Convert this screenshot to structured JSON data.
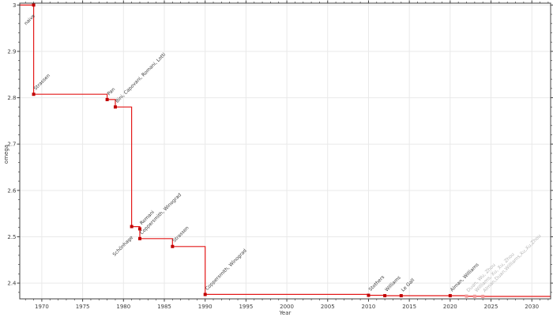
{
  "figure": {
    "background": "#ffffff"
  },
  "chart_data": {
    "type": "line",
    "step": "post",
    "title": "",
    "xlabel": "Year",
    "ylabel": "omega",
    "xlim": [
      1967.3,
      2032.3
    ],
    "ylim": [
      2.366,
      3.004
    ],
    "xticks": [
      1970,
      1975,
      1980,
      1985,
      1990,
      1995,
      2000,
      2005,
      2010,
      2015,
      2020,
      2025,
      2030
    ],
    "yticks": [
      2.4,
      2.5,
      2.6,
      2.7,
      2.8,
      2.9,
      3.0
    ],
    "x_minor_step": 1,
    "y_minor_step": 0.02,
    "grid": true,
    "legend_position": "none",
    "start_omega": 3.0,
    "points": [
      {
        "year": 1969,
        "omega": 3.0,
        "label": "naive",
        "placement": "below",
        "faded": false
      },
      {
        "year": 1969,
        "omega": 2.8074,
        "label": "Strassen",
        "placement": "above",
        "faded": false
      },
      {
        "year": 1978,
        "omega": 2.796,
        "label": "Pan",
        "placement": "above",
        "faded": false
      },
      {
        "year": 1979,
        "omega": 2.78,
        "label": "Bini, Capovani, Romani, Lotti",
        "placement": "above",
        "faded": false
      },
      {
        "year": 1981,
        "omega": 2.522,
        "label": "Schönhage",
        "placement": "below",
        "faded": false
      },
      {
        "year": 1982,
        "omega": 2.517,
        "label": "Romani",
        "placement": "above",
        "faded": false
      },
      {
        "year": 1982,
        "omega": 2.496,
        "label": "Coppersmith, Winograd",
        "placement": "above",
        "faded": false
      },
      {
        "year": 1986,
        "omega": 2.479,
        "label": "Strassen",
        "placement": "above",
        "faded": false
      },
      {
        "year": 1990,
        "omega": 2.3755,
        "label": "Coppersmith, Winograd",
        "placement": "above",
        "faded": false
      },
      {
        "year": 2010,
        "omega": 2.3737,
        "label": "Stothers",
        "placement": "above",
        "faded": false
      },
      {
        "year": 2012,
        "omega": 2.3729,
        "label": "Williams",
        "placement": "above",
        "faded": false
      },
      {
        "year": 2014,
        "omega": 2.37286,
        "label": "Le Gall",
        "placement": "above",
        "faded": false
      },
      {
        "year": 2020,
        "omega": 2.37286,
        "label": "Alman, Williams",
        "placement": "above",
        "faded": false
      },
      {
        "year": 2022,
        "omega": 2.371866,
        "label": "Duan, Wu, Zhou",
        "placement": "above",
        "faded": true
      },
      {
        "year": 2023,
        "omega": 2.371552,
        "label": "Williams, Xu, Xu, Zhou",
        "placement": "above",
        "faded": true
      },
      {
        "year": 2024,
        "omega": 2.371339,
        "label": "Alman,Duan,Williams,Xu,Xu,Zhou",
        "placement": "above",
        "faded": true
      }
    ],
    "colors": {
      "line": "#e41a1a",
      "marker": "#c00000",
      "marker_faded": "#f09a9a",
      "label": "#3a3a3a",
      "label_faded": "#b5b5b5",
      "grid": "#e9e9e9",
      "axis": "#404040",
      "tick_label": "#3d3d3d"
    }
  }
}
